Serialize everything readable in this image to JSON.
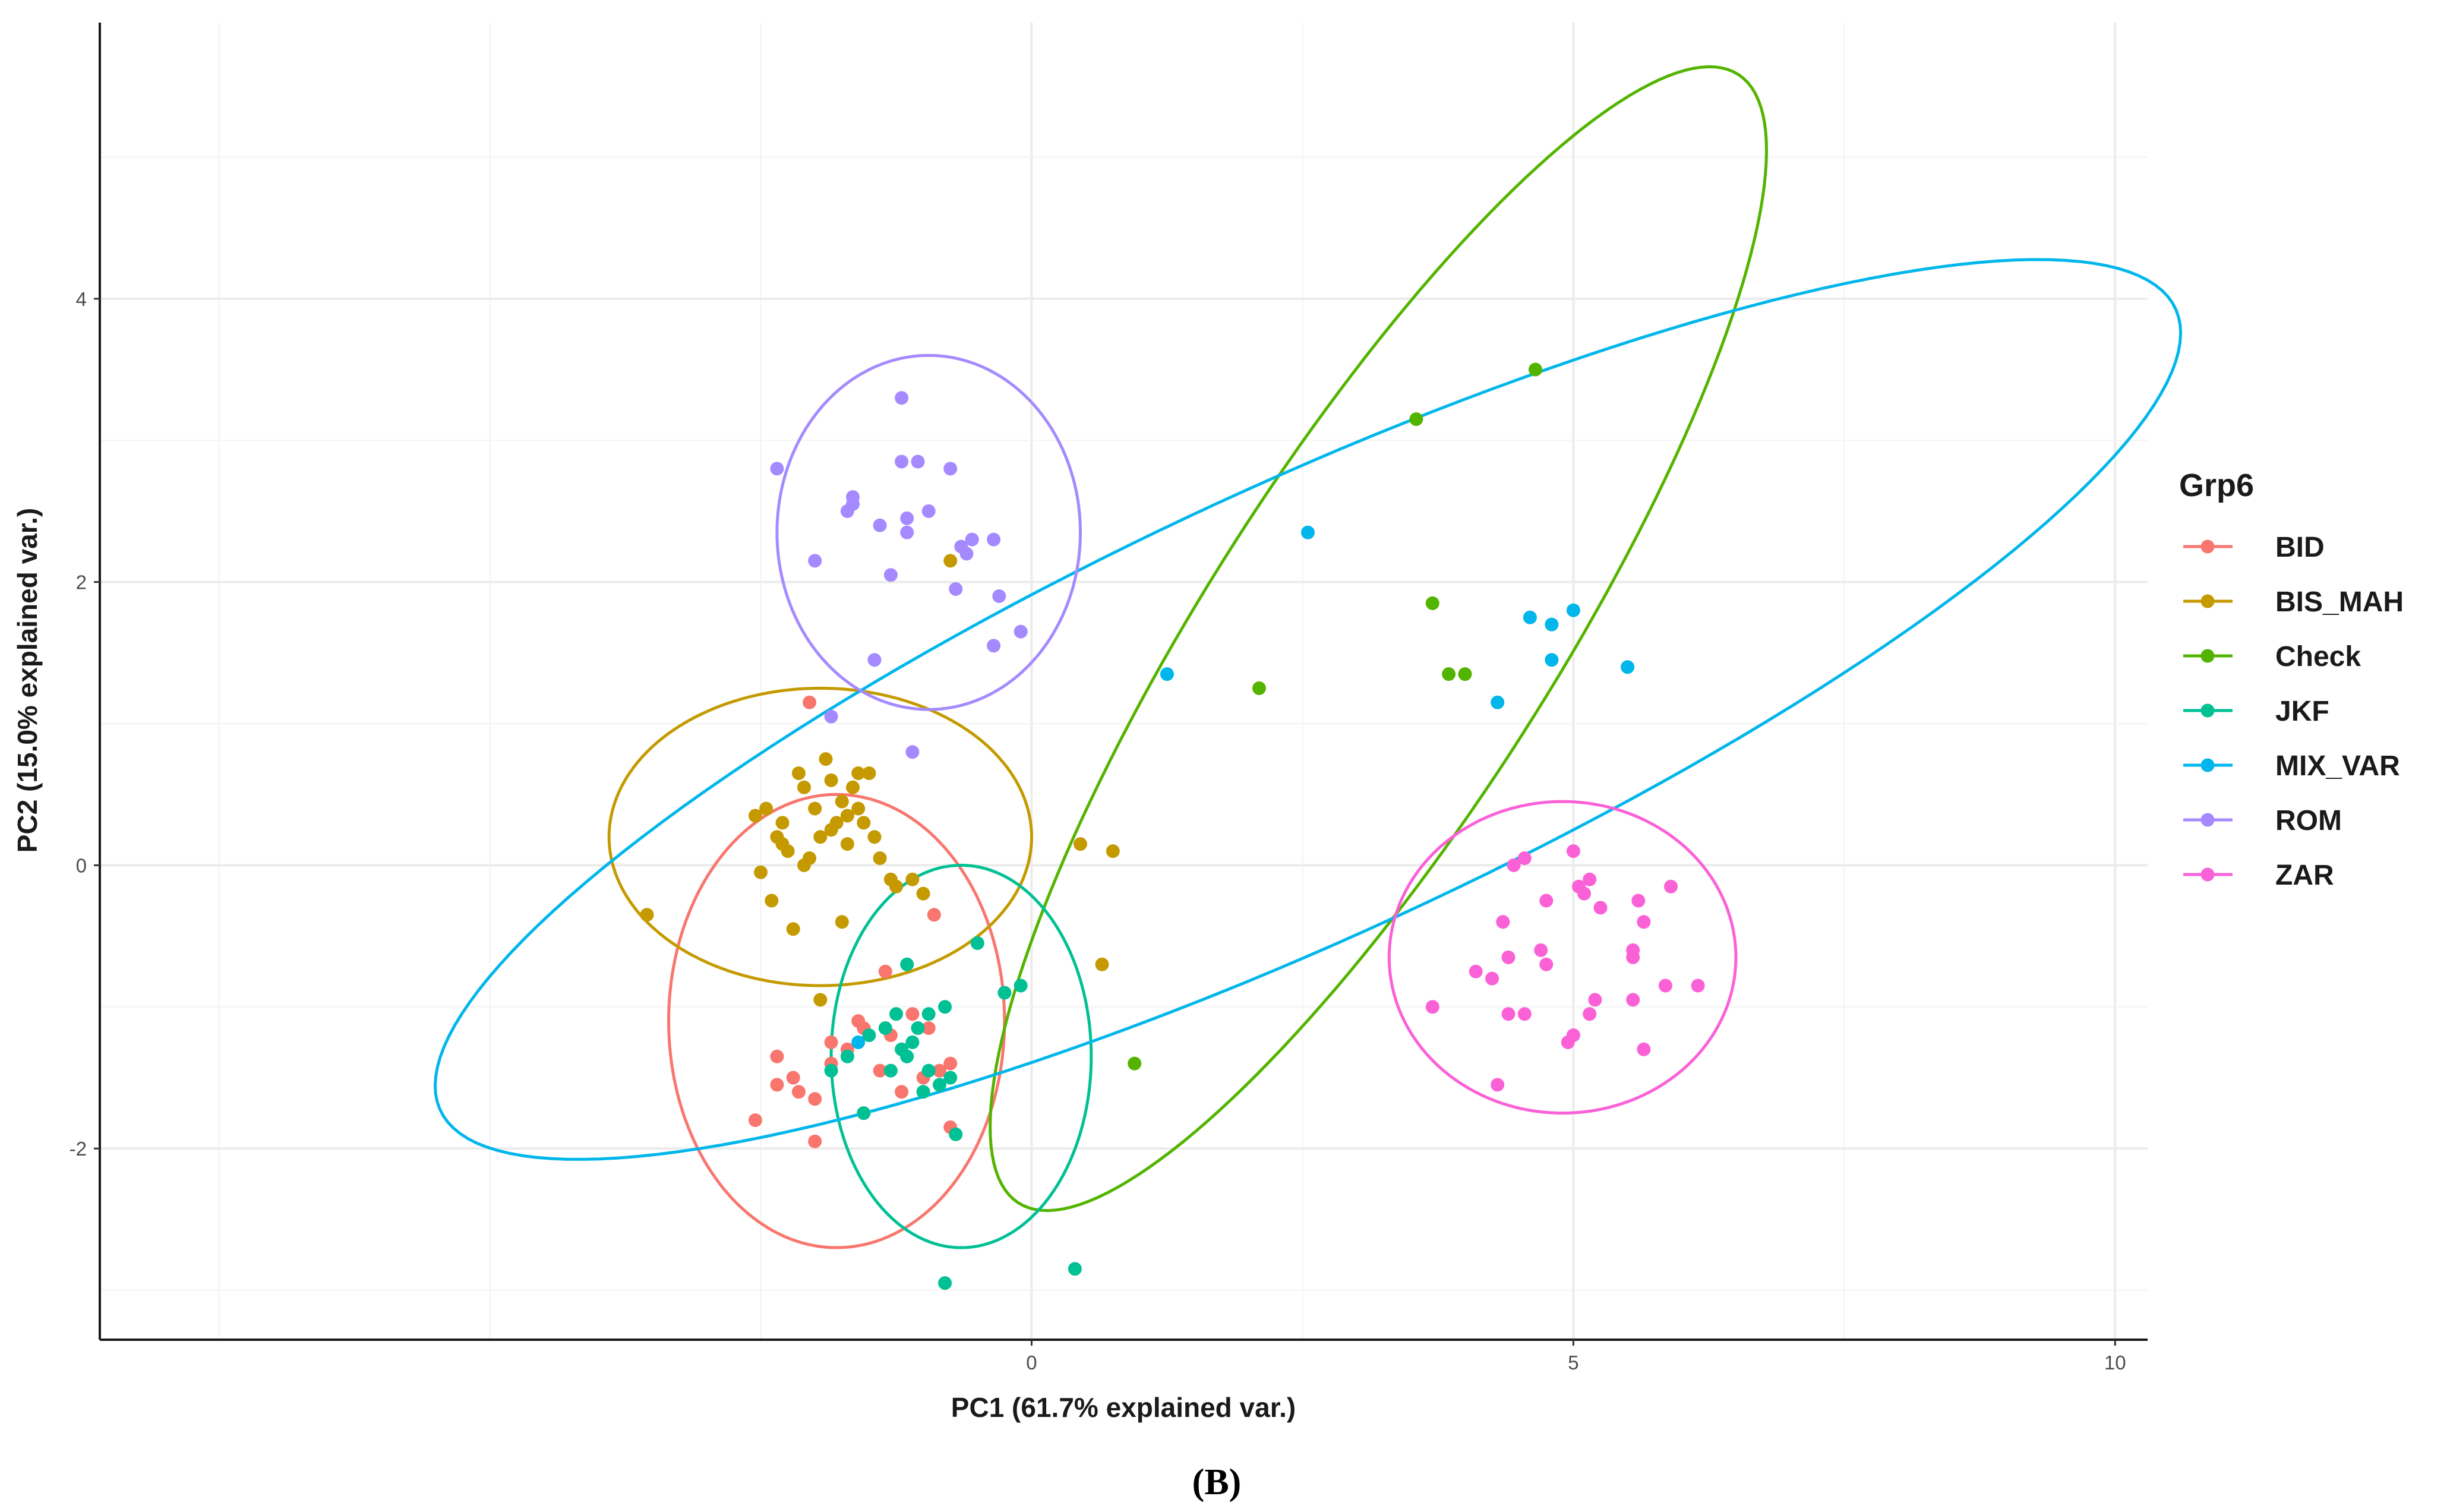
{
  "chart_data": {
    "type": "scatter",
    "title": "",
    "xlabel": "PC1 (61.7% explained var.)",
    "ylabel": "PC2 (15.0% explained var.)",
    "xlim": [
      -8.6,
      10.3
    ],
    "ylim": [
      -3.35,
      5.95
    ],
    "x_ticks": [
      0,
      5,
      10
    ],
    "x_tick_labels": [
      "0",
      "5",
      "10"
    ],
    "y_ticks": [
      -2,
      0,
      2,
      4
    ],
    "y_tick_labels": [
      "-2",
      "0",
      "2",
      "4"
    ],
    "grid": true,
    "legend_title": "Grp6",
    "legend_position": "right",
    "caption": "(B)",
    "series": [
      {
        "name": "BID",
        "color": "#F8766D",
        "points": [
          [
            -2.05,
            1.15
          ],
          [
            -2.35,
            -1.35
          ],
          [
            -1.85,
            -1.25
          ],
          [
            -1.55,
            -1.15
          ],
          [
            -1.3,
            -1.2
          ],
          [
            -1.1,
            -1.05
          ],
          [
            -0.95,
            -1.15
          ],
          [
            -1.7,
            -1.3
          ],
          [
            -1.4,
            -1.45
          ],
          [
            -1.2,
            -1.6
          ],
          [
            -0.85,
            -1.45
          ],
          [
            -2.35,
            -1.55
          ],
          [
            -2.55,
            -1.8
          ],
          [
            -2.15,
            -1.6
          ],
          [
            -2.0,
            -1.65
          ],
          [
            -1.55,
            -1.75
          ],
          [
            -1.0,
            -1.5
          ],
          [
            -0.75,
            -1.85
          ],
          [
            -2.0,
            -1.95
          ],
          [
            -0.9,
            -0.35
          ],
          [
            -1.35,
            -0.75
          ],
          [
            -1.85,
            -1.4
          ],
          [
            -1.6,
            -1.1
          ],
          [
            -0.75,
            -1.4
          ],
          [
            -2.2,
            -1.5
          ]
        ]
      },
      {
        "name": "BIS_MAH",
        "color": "#C49A00",
        "points": [
          [
            -3.55,
            -0.35
          ],
          [
            -2.55,
            0.35
          ],
          [
            -2.45,
            0.4
          ],
          [
            -2.35,
            0.2
          ],
          [
            -2.25,
            0.1
          ],
          [
            -2.3,
            0.3
          ],
          [
            -2.15,
            0.65
          ],
          [
            -2.1,
            0.55
          ],
          [
            -2.0,
            0.4
          ],
          [
            -1.9,
            0.75
          ],
          [
            -1.85,
            0.6
          ],
          [
            -1.75,
            0.45
          ],
          [
            -1.7,
            0.35
          ],
          [
            -1.65,
            0.55
          ],
          [
            -1.6,
            0.65
          ],
          [
            -1.55,
            0.3
          ],
          [
            -1.45,
            0.2
          ],
          [
            -1.4,
            0.05
          ],
          [
            -1.3,
            -0.1
          ],
          [
            -1.25,
            -0.15
          ],
          [
            -1.1,
            -0.1
          ],
          [
            -1.0,
            -0.2
          ],
          [
            -2.5,
            -0.05
          ],
          [
            -2.4,
            -0.25
          ],
          [
            -2.2,
            -0.45
          ],
          [
            -2.1,
            0.0
          ],
          [
            -1.95,
            0.2
          ],
          [
            -1.8,
            0.3
          ],
          [
            -1.75,
            -0.4
          ],
          [
            -1.95,
            -0.95
          ],
          [
            -1.5,
            0.65
          ],
          [
            -1.6,
            0.4
          ],
          [
            -0.75,
            2.15
          ],
          [
            0.45,
            0.15
          ],
          [
            0.75,
            0.1
          ],
          [
            0.65,
            -0.7
          ],
          [
            -1.85,
            0.25
          ],
          [
            -2.05,
            0.05
          ],
          [
            -1.7,
            0.15
          ],
          [
            -2.3,
            0.15
          ]
        ]
      },
      {
        "name": "Check",
        "color": "#53B400",
        "points": [
          [
            4.65,
            3.5
          ],
          [
            3.55,
            3.15
          ],
          [
            3.7,
            1.85
          ],
          [
            3.85,
            1.35
          ],
          [
            4.0,
            1.35
          ],
          [
            2.1,
            1.25
          ],
          [
            0.95,
            -1.4
          ]
        ]
      },
      {
        "name": "JKF",
        "color": "#00C094",
        "points": [
          [
            -1.25,
            -1.05
          ],
          [
            -1.1,
            -1.25
          ],
          [
            -1.05,
            -1.15
          ],
          [
            -0.95,
            -1.05
          ],
          [
            -1.2,
            -1.3
          ],
          [
            -1.35,
            -1.15
          ],
          [
            -1.5,
            -1.2
          ],
          [
            -1.7,
            -1.35
          ],
          [
            -1.3,
            -1.45
          ],
          [
            -1.15,
            -1.35
          ],
          [
            -0.95,
            -1.45
          ],
          [
            -1.0,
            -1.6
          ],
          [
            -0.85,
            -1.55
          ],
          [
            -0.75,
            -1.5
          ],
          [
            -0.8,
            -1.0
          ],
          [
            -0.7,
            -1.9
          ],
          [
            -1.15,
            -0.7
          ],
          [
            -0.5,
            -0.55
          ],
          [
            -0.25,
            -0.9
          ],
          [
            -0.1,
            -0.85
          ],
          [
            0.4,
            -2.85
          ],
          [
            -0.8,
            -2.95
          ],
          [
            -1.85,
            -1.45
          ],
          [
            -1.55,
            -1.75
          ]
        ]
      },
      {
        "name": "MIX_VAR",
        "color": "#00B6EB",
        "points": [
          [
            2.55,
            2.35
          ],
          [
            1.25,
            1.35
          ],
          [
            4.6,
            1.75
          ],
          [
            4.8,
            1.7
          ],
          [
            5.0,
            1.8
          ],
          [
            4.8,
            1.45
          ],
          [
            4.3,
            1.15
          ],
          [
            5.5,
            1.4
          ],
          [
            -1.6,
            -1.25
          ]
        ]
      },
      {
        "name": "ROM",
        "color": "#A58AFF",
        "points": [
          [
            -1.2,
            3.3
          ],
          [
            -2.35,
            2.8
          ],
          [
            -1.2,
            2.85
          ],
          [
            -1.05,
            2.85
          ],
          [
            -0.75,
            2.8
          ],
          [
            -1.65,
            2.6
          ],
          [
            -1.7,
            2.5
          ],
          [
            -1.4,
            2.4
          ],
          [
            -1.15,
            2.45
          ],
          [
            -0.95,
            2.5
          ],
          [
            -0.55,
            2.3
          ],
          [
            -0.35,
            2.3
          ],
          [
            -0.6,
            2.2
          ],
          [
            -2.0,
            2.15
          ],
          [
            -1.3,
            2.05
          ],
          [
            -0.7,
            1.95
          ],
          [
            -0.3,
            1.9
          ],
          [
            -0.1,
            1.65
          ],
          [
            -0.35,
            1.55
          ],
          [
            -1.45,
            1.45
          ],
          [
            -1.85,
            1.05
          ],
          [
            -1.1,
            0.8
          ],
          [
            -1.65,
            2.55
          ],
          [
            -0.65,
            2.25
          ],
          [
            -1.15,
            2.35
          ]
        ]
      },
      {
        "name": "ZAR",
        "color": "#FB61D7",
        "points": [
          [
            5.0,
            0.1
          ],
          [
            4.55,
            0.05
          ],
          [
            4.45,
            0.0
          ],
          [
            5.05,
            -0.15
          ],
          [
            5.15,
            -0.1
          ],
          [
            5.9,
            -0.15
          ],
          [
            5.1,
            -0.2
          ],
          [
            4.75,
            -0.25
          ],
          [
            5.6,
            -0.25
          ],
          [
            5.65,
            -0.4
          ],
          [
            4.35,
            -0.4
          ],
          [
            5.25,
            -0.3
          ],
          [
            4.7,
            -0.6
          ],
          [
            4.75,
            -0.7
          ],
          [
            4.4,
            -0.65
          ],
          [
            5.55,
            -0.6
          ],
          [
            5.55,
            -0.65
          ],
          [
            6.15,
            -0.85
          ],
          [
            5.85,
            -0.85
          ],
          [
            4.1,
            -0.75
          ],
          [
            4.25,
            -0.8
          ],
          [
            5.2,
            -0.95
          ],
          [
            5.55,
            -0.95
          ],
          [
            3.7,
            -1.0
          ],
          [
            4.4,
            -1.05
          ],
          [
            4.55,
            -1.05
          ],
          [
            5.15,
            -1.05
          ],
          [
            5.0,
            -1.2
          ],
          [
            4.95,
            -1.25
          ],
          [
            5.65,
            -1.3
          ],
          [
            4.3,
            -1.55
          ]
        ]
      }
    ],
    "ellipses": [
      {
        "group": "BID",
        "color": "#F8766D",
        "cx": -1.8,
        "cy": -1.1,
        "rx": 1.55,
        "ry": 1.6,
        "angle": 0
      },
      {
        "group": "BIS_MAH",
        "color": "#C49A00",
        "cx": -1.95,
        "cy": 0.2,
        "rx": 1.95,
        "ry": 1.05,
        "angle": 0
      },
      {
        "group": "Check",
        "color": "#53B400",
        "cx": 3.2,
        "cy": 1.6,
        "rx": 5.2,
        "ry": 1.45,
        "angle": 49
      },
      {
        "group": "JKF",
        "color": "#00C094",
        "cx": -0.65,
        "cy": -1.35,
        "rx": 1.2,
        "ry": 1.35,
        "angle": 0
      },
      {
        "group": "MIX_VAR",
        "color": "#00B6EB",
        "cx": 2.55,
        "cy": 1.1,
        "rx": 8.5,
        "ry": 1.65,
        "angle": 19
      },
      {
        "group": "ROM",
        "color": "#A58AFF",
        "cx": -0.95,
        "cy": 2.35,
        "rx": 1.4,
        "ry": 1.25,
        "angle": 0
      },
      {
        "group": "ZAR",
        "color": "#FB61D7",
        "cx": 4.9,
        "cy": -0.65,
        "rx": 1.6,
        "ry": 1.1,
        "angle": 0
      }
    ]
  }
}
